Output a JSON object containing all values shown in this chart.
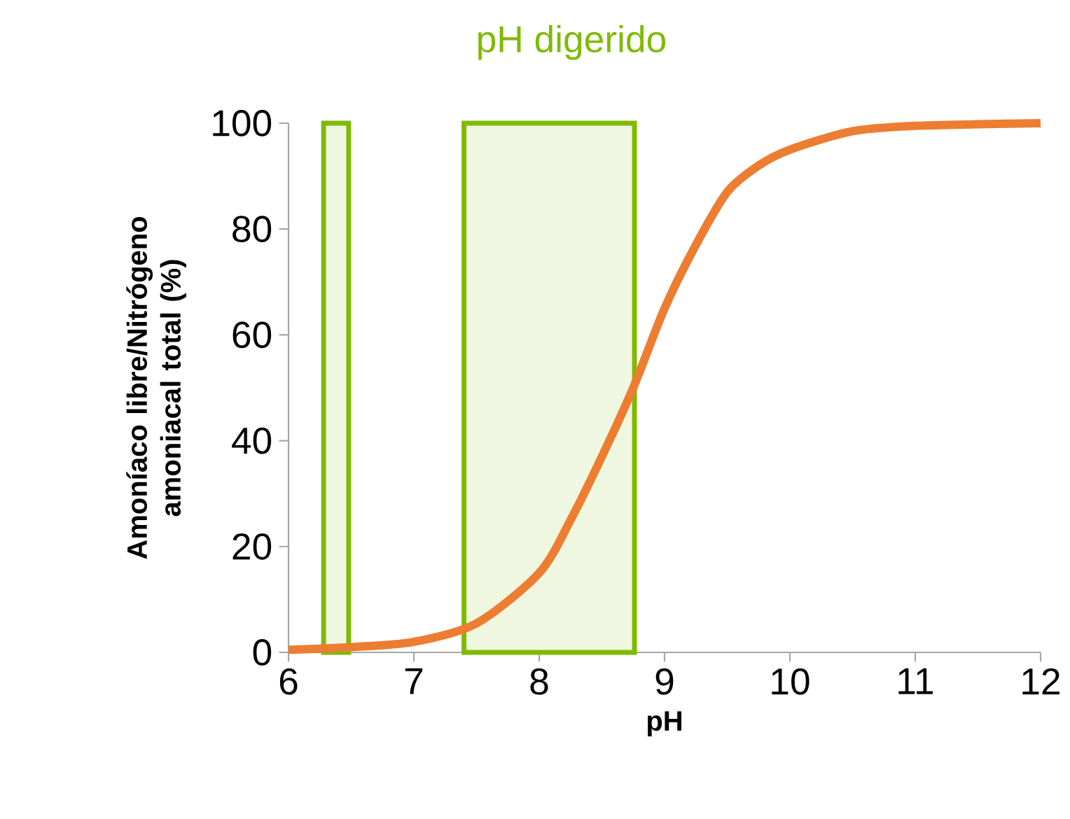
{
  "chart_data": {
    "type": "line",
    "title": "pH digerido",
    "xlabel": "pH",
    "ylabel": "Amoníaco libre/Nitrógeno amoniacal total (%)",
    "x": [
      6,
      6.5,
      7,
      7.5,
      8,
      8.25,
      8.5,
      8.75,
      9,
      9.25,
      9.5,
      9.75,
      10,
      10.5,
      11,
      11.5,
      12
    ],
    "series": [
      {
        "color": "#ed7d31",
        "values": [
          0.5,
          1,
          2,
          5.5,
          15,
          25,
          37,
          50,
          65,
          77,
          87,
          92,
          95,
          98.5,
          99.5,
          99.8,
          100
        ]
      }
    ],
    "xlim": [
      6,
      12
    ],
    "xticks": [
      6,
      7,
      8,
      9,
      10,
      11,
      12
    ],
    "ylim": [
      0,
      100
    ],
    "yticks": [
      0,
      20,
      40,
      60,
      80,
      100
    ],
    "bands": [
      {
        "axis": "x",
        "from": 6.28,
        "to": 6.48,
        "color": "#7fba00"
      },
      {
        "axis": "x",
        "from": 7.4,
        "to": 8.76,
        "color": "#7fba00"
      }
    ],
    "grid": false,
    "marker": "none",
    "line_style": "solid"
  }
}
